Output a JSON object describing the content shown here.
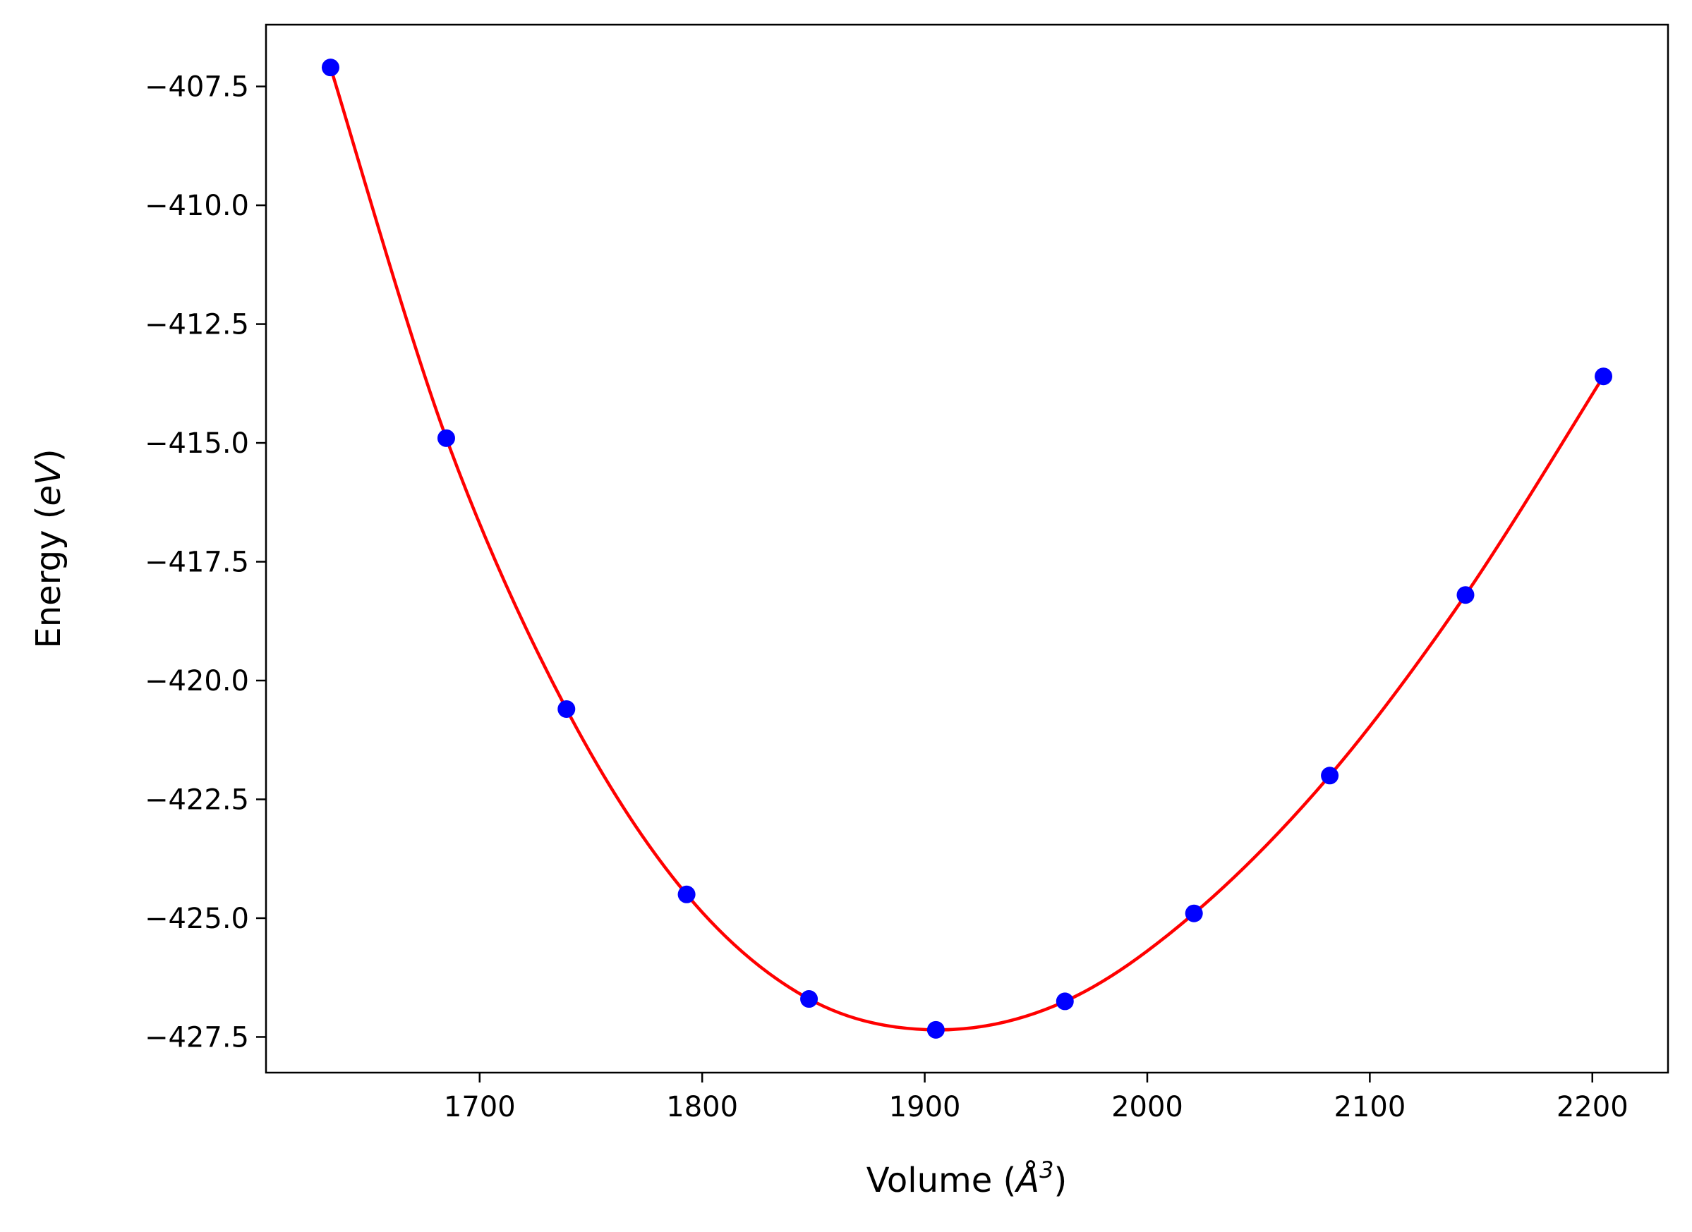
{
  "chart_data": {
    "type": "scatter",
    "xlabel": "Volume (Å³)",
    "xlabel_parts": {
      "prefix": "Volume (",
      "unit": "Å",
      "sup": "3",
      "suffix": ")"
    },
    "ylabel": "Energy (eV)",
    "ylabel_parts": {
      "prefix": "Energy (",
      "unit": "eV",
      "suffix": ")"
    },
    "xlim": [
      1604,
      2234
    ],
    "ylim": [
      -428.25,
      -406.2
    ],
    "xticks": [
      1700,
      1800,
      1900,
      2000,
      2100,
      2200
    ],
    "xtick_labels": [
      "1700",
      "1800",
      "1900",
      "2000",
      "2100",
      "2200"
    ],
    "yticks": [
      -407.5,
      -410.0,
      -412.5,
      -415.0,
      -417.5,
      -420.0,
      -422.5,
      -425.0,
      -427.5
    ],
    "ytick_labels": [
      "−407.5",
      "−410.0",
      "−412.5",
      "−415.0",
      "−417.5",
      "−420.0",
      "−422.5",
      "−425.0",
      "−427.5"
    ],
    "grid": false,
    "series": [
      {
        "kind": "points",
        "color": "#0000ff",
        "x": [
          1633,
          1685,
          1739,
          1793,
          1848,
          1905,
          1963,
          2021,
          2082,
          2143,
          2205
        ],
        "y": [
          -407.1,
          -414.9,
          -420.6,
          -424.5,
          -426.7,
          -427.35,
          -426.75,
          -424.9,
          -422.0,
          -418.2,
          -413.6
        ]
      },
      {
        "kind": "fit-curve",
        "color": "#ff0000",
        "x": [
          1633,
          1685,
          1739,
          1793,
          1848,
          1905,
          1963,
          2021,
          2082,
          2143,
          2205
        ],
        "y": [
          -407.1,
          -414.9,
          -420.6,
          -424.5,
          -426.7,
          -427.35,
          -426.75,
          -424.9,
          -422.0,
          -418.2,
          -413.6
        ]
      }
    ]
  }
}
